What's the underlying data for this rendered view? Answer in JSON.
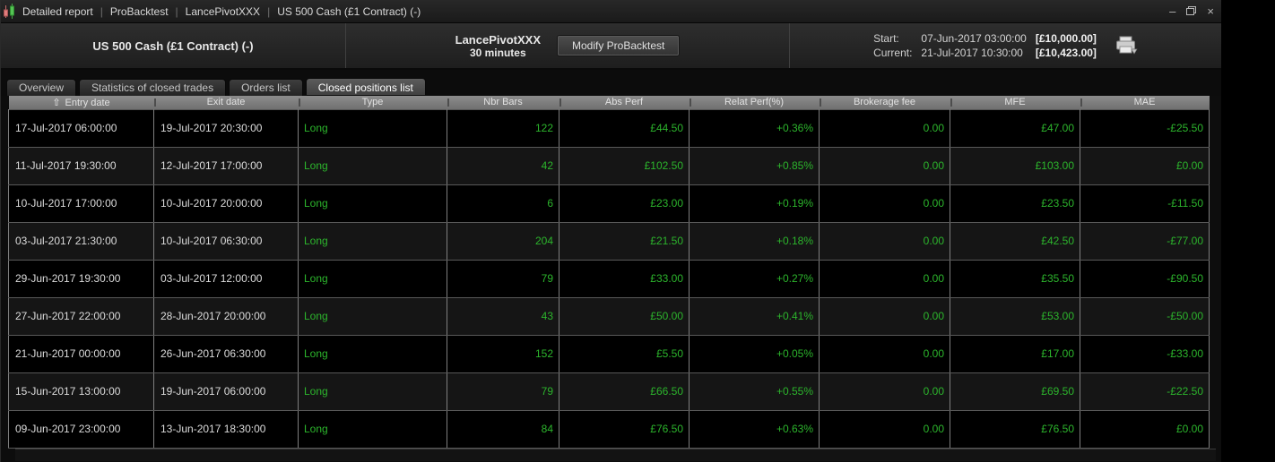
{
  "colors": {
    "green": "#2cb52c",
    "date_text": "#dcdcdc",
    "header_bg": "#7b7b7b"
  },
  "icons": {
    "title": "candlestick-icon (css-shape)",
    "sort_ascending": "⇧",
    "minimize": "–",
    "restore": "restore-icon (css-shape)",
    "close": "×",
    "print": "printer-icon (css-shape)"
  },
  "title_bar": {
    "separator": "|",
    "segments": [
      "Detailed report",
      "ProBacktest",
      "LancePivotXXX",
      "US 500 Cash (£1 Contract) (-)"
    ]
  },
  "header": {
    "instrument": "US 500 Cash (£1 Contract) (-)",
    "system_name": "LancePivotXXX",
    "timeframe": "30 minutes",
    "modify_button": "Modify ProBacktest",
    "start_label": "Start:",
    "start_date": "07-Jun-2017 03:00:00",
    "start_amount": "[£10,000.00]",
    "current_label": "Current:",
    "current_date": "21-Jul-2017 10:30:00",
    "current_amount": "[£10,423.00]"
  },
  "tabs": [
    {
      "label": "Overview",
      "active": false
    },
    {
      "label": "Statistics of closed trades",
      "active": false
    },
    {
      "label": "Orders list",
      "active": false
    },
    {
      "label": "Closed positions list",
      "active": true
    }
  ],
  "table": {
    "sort_icon": "⇧",
    "columns": [
      "Entry date",
      "Exit date",
      "Type",
      "Nbr Bars",
      "Abs Perf",
      "Relat Perf(%)",
      "Brokerage fee",
      "MFE",
      "MAE"
    ],
    "rows": [
      {
        "entry_date": "17-Jul-2017 06:00:00",
        "exit_date": "19-Jul-2017 20:30:00",
        "type": "Long",
        "nbr_bars": "122",
        "abs_perf": "£44.50",
        "relat_perf": "+0.36%",
        "brokerage_fee": "0.00",
        "mfe": "£47.00",
        "mae": "-£25.50"
      },
      {
        "entry_date": "11-Jul-2017 19:30:00",
        "exit_date": "12-Jul-2017 17:00:00",
        "type": "Long",
        "nbr_bars": "42",
        "abs_perf": "£102.50",
        "relat_perf": "+0.85%",
        "brokerage_fee": "0.00",
        "mfe": "£103.00",
        "mae": "£0.00"
      },
      {
        "entry_date": "10-Jul-2017 17:00:00",
        "exit_date": "10-Jul-2017 20:00:00",
        "type": "Long",
        "nbr_bars": "6",
        "abs_perf": "£23.00",
        "relat_perf": "+0.19%",
        "brokerage_fee": "0.00",
        "mfe": "£23.50",
        "mae": "-£11.50"
      },
      {
        "entry_date": "03-Jul-2017 21:30:00",
        "exit_date": "10-Jul-2017 06:30:00",
        "type": "Long",
        "nbr_bars": "204",
        "abs_perf": "£21.50",
        "relat_perf": "+0.18%",
        "brokerage_fee": "0.00",
        "mfe": "£42.50",
        "mae": "-£77.00"
      },
      {
        "entry_date": "29-Jun-2017 19:30:00",
        "exit_date": "03-Jul-2017 12:00:00",
        "type": "Long",
        "nbr_bars": "79",
        "abs_perf": "£33.00",
        "relat_perf": "+0.27%",
        "brokerage_fee": "0.00",
        "mfe": "£35.50",
        "mae": "-£90.50"
      },
      {
        "entry_date": "27-Jun-2017 22:00:00",
        "exit_date": "28-Jun-2017 20:00:00",
        "type": "Long",
        "nbr_bars": "43",
        "abs_perf": "£50.00",
        "relat_perf": "+0.41%",
        "brokerage_fee": "0.00",
        "mfe": "£53.00",
        "mae": "-£50.00"
      },
      {
        "entry_date": "21-Jun-2017 00:00:00",
        "exit_date": "26-Jun-2017 06:30:00",
        "type": "Long",
        "nbr_bars": "152",
        "abs_perf": "£5.50",
        "relat_perf": "+0.05%",
        "brokerage_fee": "0.00",
        "mfe": "£17.00",
        "mae": "-£33.00"
      },
      {
        "entry_date": "15-Jun-2017 13:00:00",
        "exit_date": "19-Jun-2017 06:00:00",
        "type": "Long",
        "nbr_bars": "79",
        "abs_perf": "£66.50",
        "relat_perf": "+0.55%",
        "brokerage_fee": "0.00",
        "mfe": "£69.50",
        "mae": "-£22.50"
      },
      {
        "entry_date": "09-Jun-2017 23:00:00",
        "exit_date": "13-Jun-2017 18:30:00",
        "type": "Long",
        "nbr_bars": "84",
        "abs_perf": "£76.50",
        "relat_perf": "+0.63%",
        "brokerage_fee": "0.00",
        "mfe": "£76.50",
        "mae": "£0.00"
      }
    ]
  }
}
